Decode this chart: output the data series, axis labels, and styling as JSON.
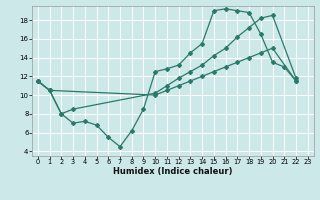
{
  "xlabel": "Humidex (Indice chaleur)",
  "bg_color": "#cce8e8",
  "grid_color": "#ffffff",
  "line_color": "#2a7a6a",
  "xlim": [
    -0.5,
    23.5
  ],
  "ylim": [
    3.5,
    19.5
  ],
  "xticks": [
    0,
    1,
    2,
    3,
    4,
    5,
    6,
    7,
    8,
    9,
    10,
    11,
    12,
    13,
    14,
    15,
    16,
    17,
    18,
    19,
    20,
    21,
    22,
    23
  ],
  "yticks": [
    4,
    6,
    8,
    10,
    12,
    14,
    16,
    18
  ],
  "line1_x": [
    0,
    1,
    2,
    3,
    4,
    5,
    6,
    7,
    8,
    9,
    10,
    11,
    12,
    13,
    14,
    15,
    16,
    17,
    18,
    19,
    20,
    21,
    22
  ],
  "line1_y": [
    11.5,
    10.5,
    8.0,
    7.0,
    7.2,
    6.8,
    5.5,
    4.5,
    6.2,
    8.5,
    12.5,
    12.8,
    13.2,
    14.5,
    15.5,
    19.0,
    19.2,
    19.0,
    18.8,
    16.5,
    13.5,
    13.0,
    11.5
  ],
  "line2_x": [
    0,
    1,
    2,
    3,
    10,
    11,
    12,
    13,
    14,
    15,
    16,
    17,
    18,
    19,
    20,
    22
  ],
  "line2_y": [
    11.5,
    10.5,
    8.0,
    8.5,
    10.2,
    11.0,
    11.8,
    12.5,
    13.2,
    14.2,
    15.0,
    16.2,
    17.2,
    18.2,
    18.5,
    11.8
  ],
  "line3_x": [
    0,
    1,
    10,
    11,
    12,
    13,
    14,
    15,
    16,
    17,
    18,
    19,
    20,
    22
  ],
  "line3_y": [
    11.5,
    10.5,
    10.0,
    10.5,
    11.0,
    11.5,
    12.0,
    12.5,
    13.0,
    13.5,
    14.0,
    14.5,
    15.0,
    11.5
  ]
}
